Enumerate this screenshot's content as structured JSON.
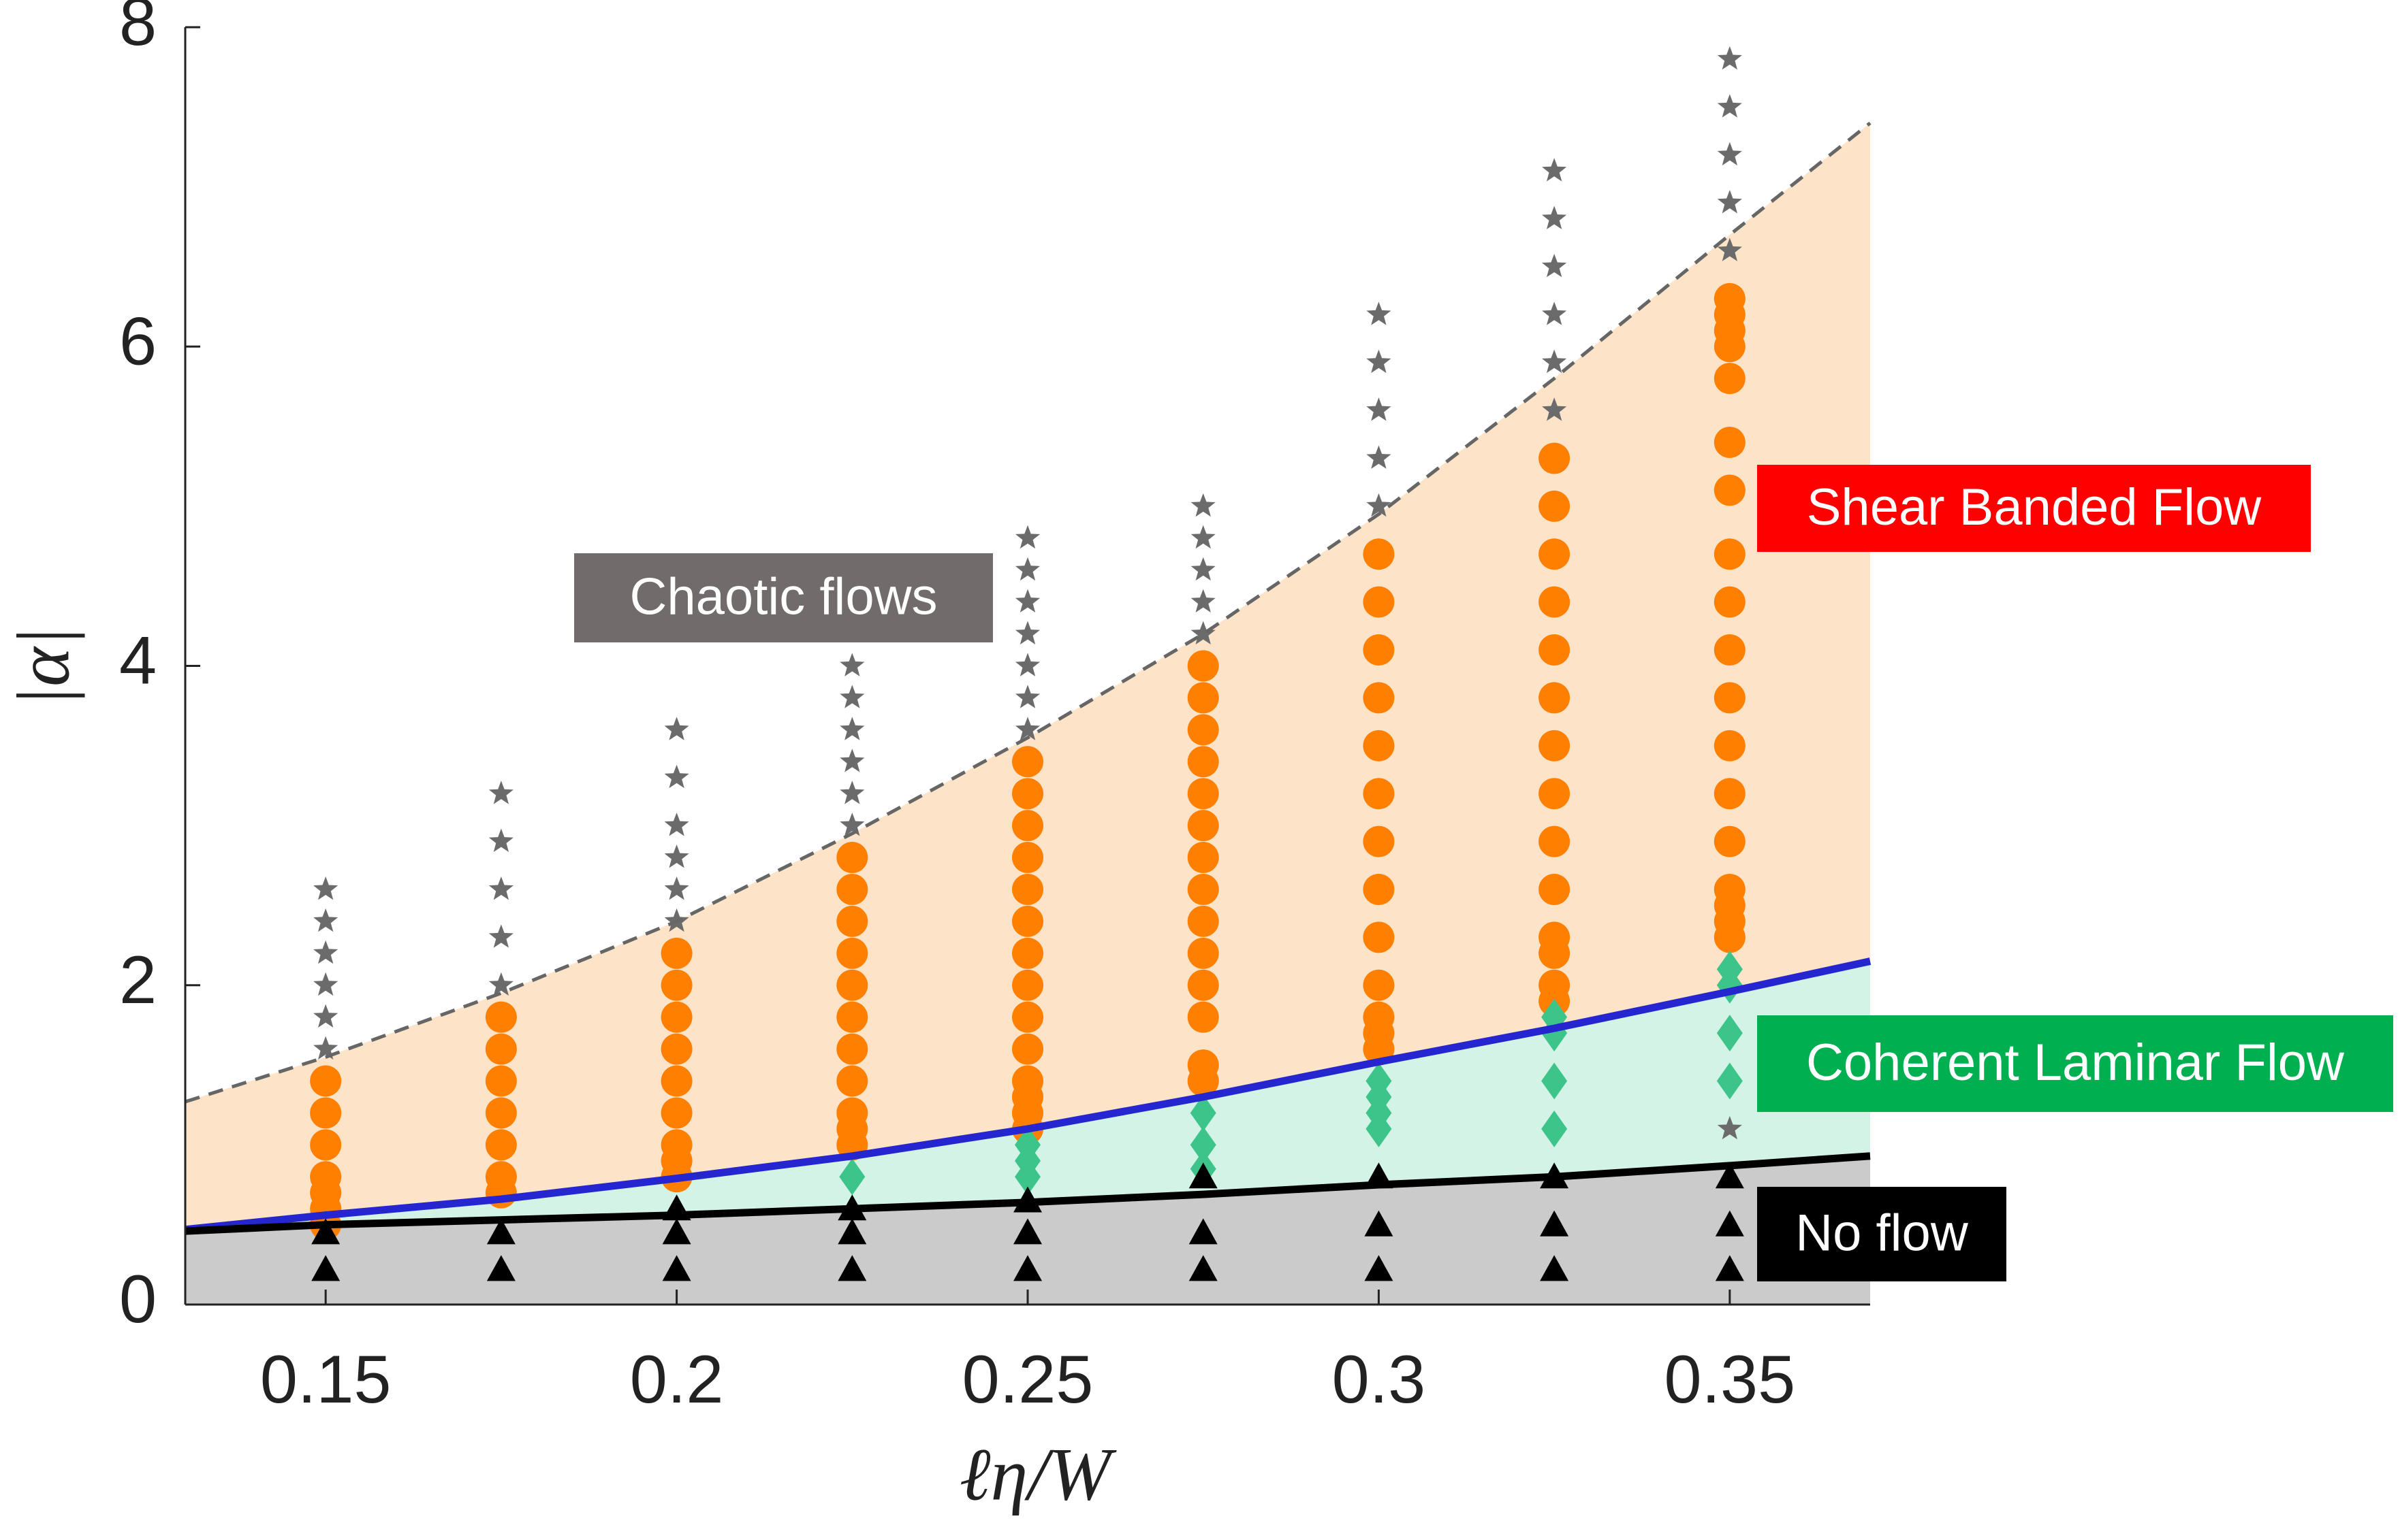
{
  "chart_data": {
    "type": "scatter",
    "xlabel": "ℓη/W",
    "ylabel": "|α|",
    "xlim": [
      0.13,
      0.37
    ],
    "ylim": [
      0,
      8
    ],
    "xticks": [
      0.15,
      0.2,
      0.25,
      0.3,
      0.35
    ],
    "yticks": [
      0,
      2,
      4,
      6,
      8
    ],
    "series": [
      {
        "name": "Chaotic flows",
        "marker": "star",
        "color": "#6b6b6b",
        "label_color": "#716b6b",
        "x": [
          0.15,
          0.15,
          0.15,
          0.15,
          0.15,
          0.15,
          0.175,
          0.175,
          0.175,
          0.175,
          0.175,
          0.2,
          0.2,
          0.2,
          0.2,
          0.2,
          0.2,
          0.225,
          0.225,
          0.225,
          0.225,
          0.225,
          0.225,
          0.25,
          0.25,
          0.25,
          0.25,
          0.25,
          0.25,
          0.25,
          0.275,
          0.275,
          0.275,
          0.275,
          0.275,
          0.3,
          0.3,
          0.3,
          0.3,
          0.3,
          0.325,
          0.325,
          0.325,
          0.325,
          0.325,
          0.325,
          0.35,
          0.35,
          0.35,
          0.35,
          0.35,
          0.35
        ],
        "values": [
          2.6,
          2.4,
          2.2,
          2.0,
          1.8,
          1.6,
          3.2,
          2.9,
          2.6,
          2.3,
          2.0,
          3.6,
          3.3,
          3.0,
          2.8,
          2.6,
          2.4,
          4.0,
          3.8,
          3.6,
          3.4,
          3.2,
          3.0,
          4.8,
          4.6,
          4.4,
          4.2,
          4.0,
          3.8,
          3.6,
          5.0,
          4.8,
          4.6,
          4.4,
          4.2,
          6.2,
          5.9,
          5.6,
          5.3,
          5.0,
          7.1,
          6.8,
          6.5,
          6.2,
          5.9,
          5.6,
          7.8,
          7.5,
          7.2,
          6.9,
          6.6,
          1.1
        ]
      },
      {
        "name": "Shear Banded Flow",
        "marker": "circle",
        "color": "#ff8000",
        "label_color": "#ff0000",
        "region_color": "#fde3c8",
        "x": [
          0.15,
          0.15,
          0.15,
          0.15,
          0.15,
          0.15,
          0.15,
          0.175,
          0.175,
          0.175,
          0.175,
          0.175,
          0.175,
          0.175,
          0.2,
          0.2,
          0.2,
          0.2,
          0.2,
          0.2,
          0.2,
          0.2,
          0.2,
          0.225,
          0.225,
          0.225,
          0.225,
          0.225,
          0.225,
          0.225,
          0.225,
          0.225,
          0.225,
          0.225,
          0.25,
          0.25,
          0.25,
          0.25,
          0.25,
          0.25,
          0.25,
          0.25,
          0.25,
          0.25,
          0.25,
          0.25,
          0.25,
          0.25,
          0.275,
          0.275,
          0.275,
          0.275,
          0.275,
          0.275,
          0.275,
          0.275,
          0.275,
          0.275,
          0.275,
          0.275,
          0.275,
          0.275,
          0.3,
          0.3,
          0.3,
          0.3,
          0.3,
          0.3,
          0.3,
          0.3,
          0.3,
          0.3,
          0.3,
          0.3,
          0.3,
          0.325,
          0.325,
          0.325,
          0.325,
          0.325,
          0.325,
          0.325,
          0.325,
          0.325,
          0.325,
          0.325,
          0.325,
          0.325,
          0.325,
          0.35,
          0.35,
          0.35,
          0.35,
          0.35,
          0.35,
          0.35,
          0.35,
          0.35,
          0.35,
          0.35,
          0.35,
          0.35,
          0.35,
          0.35,
          0.35,
          0.35,
          0.35
        ],
        "values": [
          1.4,
          1.2,
          1.0,
          0.8,
          0.7,
          0.6,
          0.5,
          1.8,
          1.6,
          1.4,
          1.2,
          1.0,
          0.8,
          0.7,
          2.2,
          2.0,
          1.8,
          1.6,
          1.4,
          1.2,
          1.0,
          0.9,
          0.8,
          2.8,
          2.6,
          2.4,
          2.2,
          2.0,
          1.8,
          1.6,
          1.4,
          1.2,
          1.1,
          1.0,
          3.4,
          3.2,
          3.0,
          2.8,
          2.6,
          2.4,
          2.2,
          2.0,
          1.8,
          1.6,
          1.4,
          1.3,
          1.2,
          1.1,
          4.0,
          3.8,
          3.6,
          3.4,
          3.2,
          3.0,
          2.8,
          2.6,
          2.4,
          2.2,
          2.0,
          1.8,
          1.5,
          1.4,
          4.7,
          4.4,
          4.1,
          3.8,
          3.5,
          3.2,
          2.9,
          2.6,
          2.3,
          2.0,
          1.8,
          1.7,
          1.6,
          5.3,
          5.0,
          4.7,
          4.4,
          4.1,
          3.8,
          3.5,
          3.2,
          2.9,
          2.6,
          2.3,
          2.2,
          2.0,
          1.9,
          6.3,
          6.2,
          6.1,
          6.0,
          5.8,
          5.4,
          5.1,
          4.7,
          4.4,
          4.1,
          3.8,
          3.5,
          3.2,
          2.9,
          2.6,
          2.5,
          2.4,
          2.3
        ]
      },
      {
        "name": "Coherent Laminar Flow",
        "marker": "diamond",
        "color": "#3cc48a",
        "label_color": "#00b050",
        "region_color": "#d4f3e7",
        "x": [
          0.225,
          0.25,
          0.25,
          0.25,
          0.275,
          0.275,
          0.275,
          0.3,
          0.3,
          0.3,
          0.3,
          0.325,
          0.325,
          0.325,
          0.325,
          0.35,
          0.35,
          0.35,
          0.35
        ],
        "values": [
          0.8,
          1.0,
          0.9,
          0.8,
          1.2,
          1.0,
          0.85,
          1.4,
          1.3,
          1.2,
          1.1,
          1.8,
          1.7,
          1.4,
          1.1,
          2.1,
          2.0,
          1.7,
          1.4
        ]
      },
      {
        "name": "No flow",
        "marker": "triangle",
        "color": "#000000",
        "label_color": "#000000",
        "region_color": "#cbcbcb",
        "x": [
          0.15,
          0.15,
          0.175,
          0.175,
          0.2,
          0.2,
          0.2,
          0.225,
          0.225,
          0.225,
          0.25,
          0.25,
          0.25,
          0.275,
          0.275,
          0.275,
          0.3,
          0.3,
          0.3,
          0.325,
          0.325,
          0.325,
          0.35,
          0.35,
          0.35
        ],
        "values": [
          0.45,
          0.22,
          0.45,
          0.22,
          0.6,
          0.45,
          0.22,
          0.6,
          0.45,
          0.22,
          0.65,
          0.45,
          0.22,
          0.8,
          0.45,
          0.22,
          0.8,
          0.5,
          0.22,
          0.8,
          0.5,
          0.22,
          0.8,
          0.5,
          0.22
        ]
      }
    ],
    "curves": [
      {
        "color": "#666666",
        "dashed": true,
        "x": [
          0.13,
          0.15,
          0.175,
          0.2,
          0.225,
          0.25,
          0.275,
          0.3,
          0.325,
          0.35,
          0.37
        ],
        "values": [
          1.27,
          1.55,
          1.95,
          2.4,
          2.95,
          3.55,
          4.2,
          4.95,
          5.8,
          6.7,
          7.4
        ]
      },
      {
        "color": "#2626d0",
        "dashed": false,
        "x": [
          0.13,
          0.15,
          0.175,
          0.2,
          0.225,
          0.25,
          0.275,
          0.3,
          0.325,
          0.35,
          0.37
        ],
        "values": [
          0.47,
          0.56,
          0.66,
          0.79,
          0.93,
          1.1,
          1.3,
          1.52,
          1.73,
          1.96,
          2.15
        ]
      },
      {
        "color": "#000000",
        "dashed": false,
        "x": [
          0.13,
          0.15,
          0.175,
          0.2,
          0.225,
          0.25,
          0.275,
          0.3,
          0.325,
          0.35,
          0.37
        ],
        "values": [
          0.46,
          0.5,
          0.53,
          0.56,
          0.6,
          0.64,
          0.69,
          0.75,
          0.8,
          0.87,
          0.93
        ]
      }
    ]
  }
}
